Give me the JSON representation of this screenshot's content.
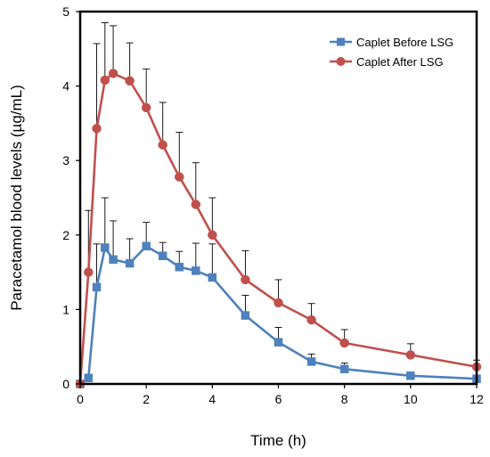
{
  "chart_data": {
    "type": "line",
    "title": "",
    "xlabel": "Time (h)",
    "ylabel": "Paracetamol blood levels (µg/mL)",
    "xlim": [
      0,
      12
    ],
    "ylim": [
      0,
      5
    ],
    "xticks": [
      "0",
      "2",
      "4",
      "6",
      "8",
      "10",
      "12"
    ],
    "yticks": [
      "0",
      "1",
      "2",
      "3",
      "4",
      "5"
    ],
    "grid": false,
    "legend_position": "top-right",
    "series": [
      {
        "name": "Caplet Before LSG",
        "color": "#4f81bd",
        "marker": "square",
        "x": [
          0,
          0.25,
          0.5,
          0.75,
          1,
          1.5,
          2,
          2.5,
          3,
          3.5,
          4,
          5,
          6,
          7,
          8,
          10,
          12
        ],
        "y": [
          0,
          0.08,
          1.3,
          1.83,
          1.67,
          1.62,
          1.85,
          1.72,
          1.57,
          1.52,
          1.43,
          0.92,
          0.56,
          0.3,
          0.2,
          0.11,
          0.07
        ],
        "err": [
          0,
          0,
          0.58,
          0.67,
          0.52,
          0.33,
          0.32,
          0.18,
          0.21,
          0.37,
          0.45,
          0.27,
          0.2,
          0.1,
          0.08,
          0.04,
          0.03
        ]
      },
      {
        "name": "Caplet After LSG",
        "color": "#c0504d",
        "marker": "circle",
        "x": [
          0,
          0.25,
          0.5,
          0.75,
          1,
          1.5,
          2,
          2.5,
          3,
          3.5,
          4,
          5,
          6,
          7,
          8,
          10,
          12
        ],
        "y": [
          0,
          1.5,
          3.43,
          4.08,
          4.17,
          4.07,
          3.71,
          3.21,
          2.78,
          2.41,
          2.0,
          1.4,
          1.09,
          0.86,
          0.55,
          0.39,
          0.23
        ],
        "err": [
          0,
          0.83,
          1.14,
          0.77,
          0.64,
          0.51,
          0.52,
          0.57,
          0.6,
          0.56,
          0.5,
          0.39,
          0.31,
          0.22,
          0.18,
          0.15,
          0.09
        ]
      }
    ]
  }
}
